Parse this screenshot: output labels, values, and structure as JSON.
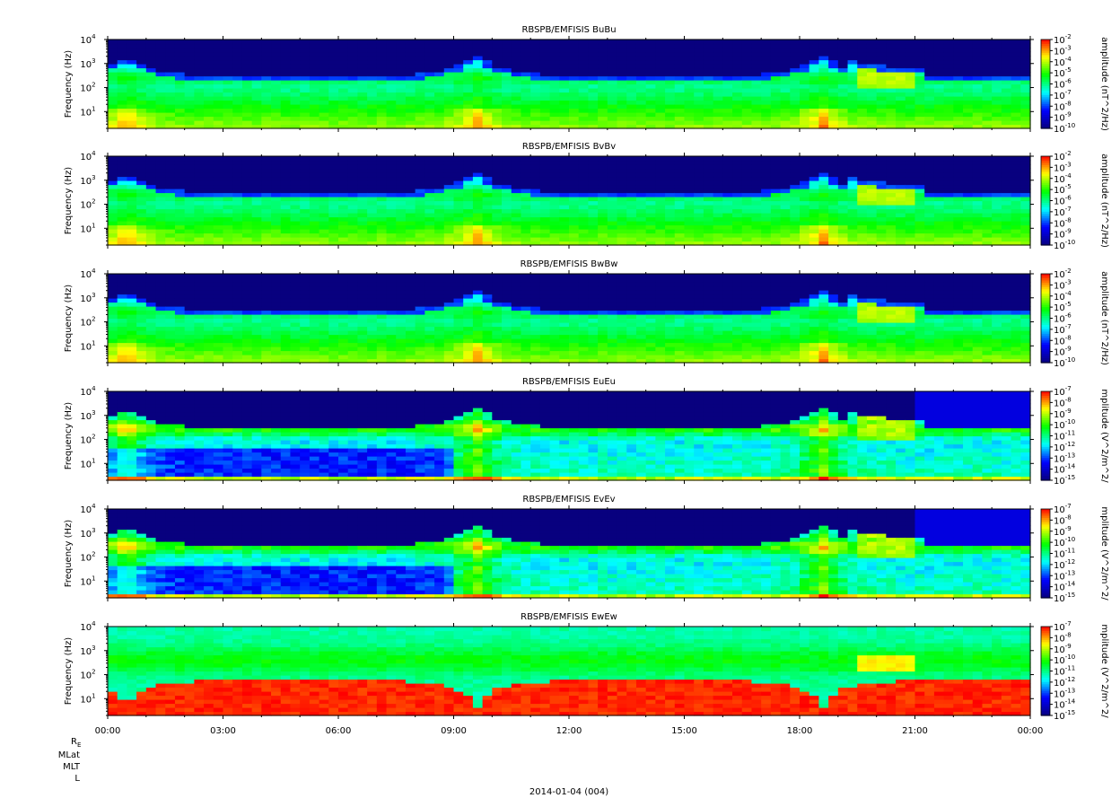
{
  "chart_data": [
    {
      "type": "heatmap",
      "title": "RBSPB/EMFISIS  BuBu",
      "ylabel": "Frequency (Hz)",
      "colorbar_label": "amplitude (nT^2/Hz)",
      "ylim": [
        2,
        10000
      ],
      "yscale": "log",
      "y_ticks": [
        {
          "exp": "1"
        },
        {
          "exp": "2"
        },
        {
          "exp": "3"
        },
        {
          "exp": "4"
        }
      ],
      "clim_exp": [
        -10,
        -2
      ],
      "colorbar_ticks": [
        {
          "exp": "-2"
        },
        {
          "exp": "-3"
        },
        {
          "exp": "-4"
        },
        {
          "exp": "-5"
        },
        {
          "exp": "-6"
        },
        {
          "exp": "-7"
        },
        {
          "exp": "-8"
        },
        {
          "exp": "-9"
        },
        {
          "exp": "-10"
        }
      ],
      "colormap": [
        "#08007f",
        "#0000ff",
        "#00ffff",
        "#00ff00",
        "#ffff00",
        "#ff0000"
      ],
      "profile": "B"
    },
    {
      "type": "heatmap",
      "title": "RBSPB/EMFISIS  BvBv",
      "ylabel": "Frequency (Hz)",
      "colorbar_label": "amplitude (nT^2/Hz)",
      "ylim": [
        2,
        10000
      ],
      "yscale": "log",
      "y_ticks": [
        {
          "exp": "1"
        },
        {
          "exp": "2"
        },
        {
          "exp": "3"
        },
        {
          "exp": "4"
        }
      ],
      "clim_exp": [
        -10,
        -2
      ],
      "colorbar_ticks": [
        {
          "exp": "-2"
        },
        {
          "exp": "-3"
        },
        {
          "exp": "-4"
        },
        {
          "exp": "-5"
        },
        {
          "exp": "-6"
        },
        {
          "exp": "-7"
        },
        {
          "exp": "-8"
        },
        {
          "exp": "-9"
        },
        {
          "exp": "-10"
        }
      ],
      "colormap": [
        "#08007f",
        "#0000ff",
        "#00ffff",
        "#00ff00",
        "#ffff00",
        "#ff0000"
      ],
      "profile": "B"
    },
    {
      "type": "heatmap",
      "title": "RBSPB/EMFISIS  BwBw",
      "ylabel": "Frequency (Hz)",
      "colorbar_label": "amplitude (nT^2/Hz)",
      "ylim": [
        2,
        10000
      ],
      "yscale": "log",
      "y_ticks": [
        {
          "exp": "1"
        },
        {
          "exp": "2"
        },
        {
          "exp": "3"
        },
        {
          "exp": "4"
        }
      ],
      "clim_exp": [
        -10,
        -2
      ],
      "colorbar_ticks": [
        {
          "exp": "-2"
        },
        {
          "exp": "-3"
        },
        {
          "exp": "-4"
        },
        {
          "exp": "-5"
        },
        {
          "exp": "-6"
        },
        {
          "exp": "-7"
        },
        {
          "exp": "-8"
        },
        {
          "exp": "-9"
        },
        {
          "exp": "-10"
        }
      ],
      "colormap": [
        "#08007f",
        "#0000ff",
        "#00ffff",
        "#00ff00",
        "#ffff00",
        "#ff0000"
      ],
      "profile": "Bw"
    },
    {
      "type": "heatmap",
      "title": "RBSPB/EMFISIS  EuEu",
      "ylabel": "Frequency (Hz)",
      "colorbar_label": "mplitude (V^2/m^2/",
      "ylim": [
        2,
        10000
      ],
      "yscale": "log",
      "y_ticks": [
        {
          "exp": "1"
        },
        {
          "exp": "2"
        },
        {
          "exp": "3"
        },
        {
          "exp": "4"
        }
      ],
      "clim_exp": [
        -15,
        -7
      ],
      "colorbar_ticks": [
        {
          "exp": "-7"
        },
        {
          "exp": "-8"
        },
        {
          "exp": "-9"
        },
        {
          "exp": "-10"
        },
        {
          "exp": "-11"
        },
        {
          "exp": "-12"
        },
        {
          "exp": "-13"
        },
        {
          "exp": "-14"
        },
        {
          "exp": "-15"
        }
      ],
      "colormap": [
        "#08007f",
        "#0000ff",
        "#00ffff",
        "#00ff00",
        "#ffff00",
        "#ff0000"
      ],
      "profile": "E"
    },
    {
      "type": "heatmap",
      "title": "RBSPB/EMFISIS  EvEv",
      "ylabel": "Frequency (Hz)",
      "colorbar_label": "mplitude (V^2/m^2/",
      "ylim": [
        2,
        10000
      ],
      "yscale": "log",
      "y_ticks": [
        {
          "exp": "1"
        },
        {
          "exp": "2"
        },
        {
          "exp": "3"
        },
        {
          "exp": "4"
        }
      ],
      "clim_exp": [
        -15,
        -7
      ],
      "colorbar_ticks": [
        {
          "exp": "-7"
        },
        {
          "exp": "-8"
        },
        {
          "exp": "-9"
        },
        {
          "exp": "-10"
        },
        {
          "exp": "-11"
        },
        {
          "exp": "-12"
        },
        {
          "exp": "-13"
        },
        {
          "exp": "-14"
        },
        {
          "exp": "-15"
        }
      ],
      "colormap": [
        "#08007f",
        "#0000ff",
        "#00ffff",
        "#00ff00",
        "#ffff00",
        "#ff0000"
      ],
      "profile": "E"
    },
    {
      "type": "heatmap",
      "title": "RBSPB/EMFISIS  EwEw",
      "ylabel": "Frequency (Hz)",
      "colorbar_label": "mplitude (V^2/m^2/",
      "ylim": [
        2,
        10000
      ],
      "yscale": "log",
      "y_ticks": [
        {
          "exp": "1"
        },
        {
          "exp": "2"
        },
        {
          "exp": "3"
        },
        {
          "exp": "4"
        }
      ],
      "clim_exp": [
        -15,
        -7
      ],
      "colorbar_ticks": [
        {
          "exp": "-7"
        },
        {
          "exp": "-8"
        },
        {
          "exp": "-9"
        },
        {
          "exp": "-10"
        },
        {
          "exp": "-11"
        },
        {
          "exp": "-12"
        },
        {
          "exp": "-13"
        },
        {
          "exp": "-14"
        },
        {
          "exp": "-15"
        }
      ],
      "colormap": [
        "#08007f",
        "#0000ff",
        "#00ffff",
        "#00ff00",
        "#ffff00",
        "#ff0000"
      ],
      "profile": "Ew"
    }
  ],
  "x_axis": {
    "ticks": [
      "00:00",
      "03:00",
      "06:00",
      "09:00",
      "12:00",
      "15:00",
      "18:00",
      "21:00",
      "00:00"
    ],
    "date_label": "2014-01-04 (004)"
  },
  "ephemeris_labels": {
    "re_main": "R",
    "re_sub": "E",
    "mlat": "MLat",
    "mlt": "MLT",
    "l": "L"
  }
}
